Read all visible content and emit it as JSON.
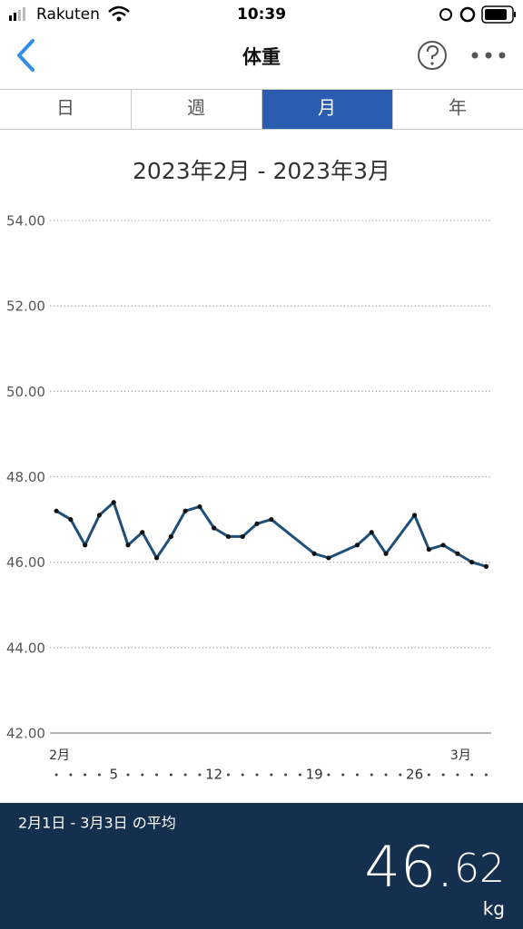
{
  "status_bar": {
    "carrier": "Rakuten",
    "time": "10:39"
  },
  "header": {
    "title": "体重"
  },
  "tabs": [
    "日",
    "週",
    "月",
    "年"
  ],
  "selected_tab": 2,
  "chart_data": {
    "type": "line",
    "title": "2023年2月 - 2023年3月",
    "x": [
      1,
      2,
      3,
      4,
      5,
      6,
      7,
      8,
      9,
      10,
      11,
      12,
      13,
      14,
      15,
      16,
      19,
      20,
      22,
      23,
      24,
      26,
      27,
      28,
      29,
      30,
      31
    ],
    "series": [
      {
        "color": "#1f4e79",
        "values": [
          47.2,
          47.0,
          46.4,
          47.1,
          47.4,
          46.4,
          46.7,
          46.1,
          46.6,
          47.2,
          47.3,
          46.8,
          46.6,
          46.6,
          46.9,
          47.0,
          46.2,
          46.1,
          46.4,
          46.7,
          46.2,
          47.1,
          46.3,
          46.4,
          46.2,
          46.0,
          45.9
        ]
      }
    ],
    "xlim": [
      0.55,
      31.35
    ],
    "xticks": [
      5,
      12,
      19,
      26
    ],
    "month_ticks": [
      {
        "value": 1,
        "label": "2月"
      },
      {
        "value": 29,
        "label": "3月"
      }
    ],
    "ylim": [
      42,
      54
    ],
    "yticks": [
      {
        "value": 54,
        "label": "54.00"
      },
      {
        "value": 52,
        "label": "52.00"
      },
      {
        "value": 50,
        "label": "50.00"
      },
      {
        "value": 48,
        "label": "48.00"
      },
      {
        "value": 46,
        "label": "46.00"
      },
      {
        "value": 44,
        "label": "44.00"
      },
      {
        "value": 42,
        "label": "42.00"
      }
    ],
    "grid": true
  },
  "summary": {
    "period": "2月1日 - 3月3日 の平均",
    "average": "46.62",
    "unit": "kg"
  }
}
